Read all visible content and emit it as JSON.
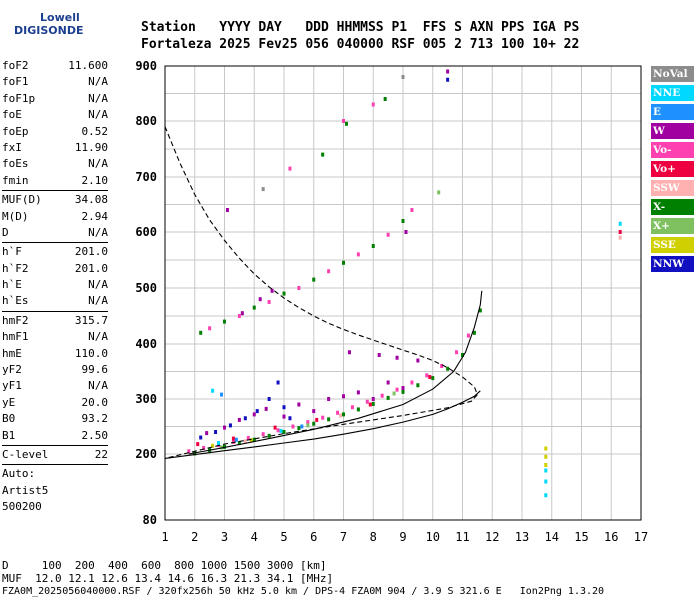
{
  "logo": {
    "line1": "Lowell",
    "line2": "DIGISONDE"
  },
  "header": {
    "line1": "Station   YYYY DAY   DDD HHMMSS P1  FFS S AXN PPS IGA PS",
    "line2": "Fortaleza 2025 Fev25 056 040000 RSF 005 2 713 100 10+ 22"
  },
  "params": [
    {
      "label": "foF2",
      "value": "11.600"
    },
    {
      "label": "foF1",
      "value": "N/A"
    },
    {
      "label": "foF1p",
      "value": "N/A"
    },
    {
      "label": "foE",
      "value": "N/A"
    },
    {
      "label": "foEp",
      "value": "0.52"
    },
    {
      "label": "fxI",
      "value": "11.90"
    },
    {
      "label": "foEs",
      "value": "N/A"
    },
    {
      "label": "fmin",
      "value": "2.10"
    },
    {
      "sep": true
    },
    {
      "label": "MUF(D)",
      "value": "34.08"
    },
    {
      "label": "M(D)",
      "value": "2.94"
    },
    {
      "label": "D",
      "value": "N/A"
    },
    {
      "sep": true
    },
    {
      "label": "h`F",
      "value": "201.0"
    },
    {
      "label": "h`F2",
      "value": "201.0"
    },
    {
      "label": "h`E",
      "value": "N/A"
    },
    {
      "label": "h`Es",
      "value": "N/A"
    },
    {
      "sep": true
    },
    {
      "label": "hmF2",
      "value": "315.7"
    },
    {
      "label": "hmF1",
      "value": "N/A"
    },
    {
      "label": "hmE",
      "value": "110.0"
    },
    {
      "label": "yF2",
      "value": "99.6"
    },
    {
      "label": "yF1",
      "value": "N/A"
    },
    {
      "label": "yE",
      "value": "20.0"
    },
    {
      "label": "B0",
      "value": "93.2"
    },
    {
      "label": "B1",
      "value": "2.50"
    },
    {
      "sep": true
    },
    {
      "label": "C-level",
      "value": "22"
    },
    {
      "sep": true
    },
    {
      "label": "Auto:",
      "value": ""
    },
    {
      "label": "Artist5",
      "value": ""
    },
    {
      "label": "500200",
      "value": ""
    }
  ],
  "legend": [
    {
      "label": "NoVal",
      "color": "#8c8c8c"
    },
    {
      "label": "NNE",
      "color": "#00d8ff"
    },
    {
      "label": "E",
      "color": "#1e90ff"
    },
    {
      "label": "W",
      "color": "#a000a0"
    },
    {
      "label": "Vo-",
      "color": "#ff40b0"
    },
    {
      "label": "Vo+",
      "color": "#ee0040"
    },
    {
      "label": "SSW",
      "color": "#ffb0b0"
    },
    {
      "label": "X-",
      "color": "#008000"
    },
    {
      "label": "X+",
      "color": "#7fc060"
    },
    {
      "label": "SSE",
      "color": "#d0d000"
    },
    {
      "label": "NNW",
      "color": "#1010c0"
    }
  ],
  "footer": {
    "line1": "D     100  200  400  600  800 1000 1500 3000 [km]",
    "line2": "MUF  12.0 12.1 12.6 13.4 14.6 16.3 21.3 34.1 [MHz]",
    "line3": "FZA0M_2025056040000.RSF / 320fx256h 50 kHz 5.0 km / DPS-4 FZA0M 904 / 3.9 S 321.6 E   Ion2Png 1.3.20"
  },
  "chart_data": {
    "type": "scatter",
    "xlim": [
      1,
      17
    ],
    "ylim": [
      80,
      900
    ],
    "x_ticks": [
      1,
      2,
      3,
      4,
      5,
      6,
      7,
      8,
      9,
      10,
      11,
      12,
      13,
      14,
      15,
      16,
      17
    ],
    "y_ticks": [
      80,
      200,
      300,
      400,
      500,
      600,
      700,
      800,
      900
    ],
    "grid": true,
    "series": [
      {
        "name": "X-",
        "color": "#008000",
        "points": [
          [
            2.0,
            201
          ],
          [
            2.5,
            207
          ],
          [
            3.0,
            213
          ],
          [
            3.5,
            220
          ],
          [
            4.0,
            226
          ],
          [
            4.5,
            233
          ],
          [
            5.0,
            240
          ],
          [
            5.5,
            247
          ],
          [
            6.0,
            255
          ],
          [
            6.5,
            263
          ],
          [
            7.0,
            272
          ],
          [
            7.5,
            281
          ],
          [
            8.0,
            291
          ],
          [
            8.5,
            302
          ],
          [
            9.0,
            313
          ],
          [
            9.5,
            325
          ],
          [
            10.0,
            338
          ],
          [
            10.5,
            355
          ],
          [
            11.0,
            380
          ],
          [
            11.4,
            420
          ],
          [
            11.6,
            460
          ],
          [
            2.2,
            420
          ],
          [
            3.0,
            440
          ],
          [
            4.0,
            465
          ],
          [
            5.0,
            490
          ],
          [
            6.0,
            515
          ],
          [
            7.0,
            545
          ],
          [
            8.0,
            575
          ],
          [
            9.0,
            620
          ],
          [
            6.3,
            740
          ],
          [
            7.1,
            795
          ],
          [
            8.4,
            840
          ]
        ]
      },
      {
        "name": "Vo-",
        "color": "#ff40b0",
        "points": [
          [
            1.8,
            205
          ],
          [
            2.3,
            211
          ],
          [
            2.8,
            216
          ],
          [
            3.3,
            222
          ],
          [
            3.8,
            229
          ],
          [
            4.3,
            236
          ],
          [
            4.8,
            243
          ],
          [
            5.3,
            250
          ],
          [
            5.8,
            258
          ],
          [
            6.3,
            266
          ],
          [
            6.8,
            275
          ],
          [
            7.3,
            285
          ],
          [
            7.8,
            295
          ],
          [
            8.3,
            306
          ],
          [
            8.8,
            317
          ],
          [
            9.3,
            330
          ],
          [
            9.8,
            343
          ],
          [
            10.3,
            360
          ],
          [
            10.8,
            385
          ],
          [
            11.2,
            415
          ],
          [
            2.5,
            428
          ],
          [
            3.5,
            450
          ],
          [
            4.5,
            475
          ],
          [
            5.5,
            500
          ],
          [
            6.5,
            530
          ],
          [
            7.5,
            560
          ],
          [
            8.5,
            595
          ],
          [
            9.3,
            640
          ],
          [
            5.2,
            715
          ],
          [
            7.0,
            800
          ],
          [
            8.0,
            830
          ]
        ]
      },
      {
        "name": "W",
        "color": "#a000a0",
        "points": [
          [
            2.4,
            238
          ],
          [
            3.0,
            248
          ],
          [
            3.5,
            262
          ],
          [
            4.0,
            272
          ],
          [
            4.4,
            282
          ],
          [
            5.0,
            268
          ],
          [
            5.5,
            290
          ],
          [
            6.0,
            278
          ],
          [
            6.5,
            300
          ],
          [
            7.0,
            305
          ],
          [
            7.5,
            312
          ],
          [
            8.0,
            300
          ],
          [
            8.5,
            330
          ],
          [
            9.0,
            320
          ],
          [
            4.2,
            480
          ],
          [
            4.6,
            495
          ],
          [
            3.6,
            455
          ],
          [
            8.2,
            380
          ],
          [
            8.8,
            375
          ],
          [
            9.5,
            370
          ],
          [
            7.2,
            385
          ],
          [
            3.1,
            640
          ],
          [
            9.1,
            600
          ],
          [
            10.5,
            890
          ]
        ]
      },
      {
        "name": "NNW",
        "color": "#1010c0",
        "points": [
          [
            2.2,
            230
          ],
          [
            2.7,
            240
          ],
          [
            3.2,
            252
          ],
          [
            3.7,
            265
          ],
          [
            4.1,
            278
          ],
          [
            4.5,
            300
          ],
          [
            4.8,
            330
          ],
          [
            5.0,
            285
          ],
          [
            5.2,
            265
          ],
          [
            10.5,
            875
          ]
        ]
      },
      {
        "name": "Vo+",
        "color": "#ee0040",
        "points": [
          [
            2.1,
            218
          ],
          [
            3.3,
            228
          ],
          [
            4.7,
            248
          ],
          [
            6.1,
            262
          ],
          [
            7.9,
            290
          ],
          [
            9.9,
            340
          ],
          [
            16.3,
            600
          ]
        ]
      },
      {
        "name": "SSE",
        "color": "#d0d000",
        "points": [
          [
            2.6,
            215
          ],
          [
            3.9,
            225
          ],
          [
            13.8,
            210
          ],
          [
            13.8,
            195
          ],
          [
            13.8,
            180
          ]
        ]
      },
      {
        "name": "NNE",
        "color": "#00d8ff",
        "points": [
          [
            2.8,
            220
          ],
          [
            4.9,
            242
          ],
          [
            13.8,
            170
          ],
          [
            13.8,
            150
          ],
          [
            13.8,
            125
          ],
          [
            16.3,
            615
          ],
          [
            2.6,
            315
          ]
        ]
      },
      {
        "name": "E",
        "color": "#1e90ff",
        "points": [
          [
            3.4,
            226
          ],
          [
            5.6,
            250
          ],
          [
            2.9,
            308
          ]
        ]
      },
      {
        "name": "X+",
        "color": "#7fc060",
        "points": [
          [
            2.9,
            212
          ],
          [
            5.8,
            252
          ],
          [
            8.7,
            310
          ],
          [
            10.2,
            672
          ]
        ]
      },
      {
        "name": "SSW",
        "color": "#ffb0b0",
        "points": [
          [
            3.7,
            223
          ],
          [
            6.9,
            270
          ],
          [
            16.3,
            590
          ]
        ]
      },
      {
        "name": "NoVal",
        "color": "#8c8c8c",
        "points": [
          [
            4.3,
            678
          ],
          [
            9.0,
            880
          ]
        ]
      }
    ],
    "curves": [
      {
        "style": "dashed",
        "points": [
          [
            1.0,
            790
          ],
          [
            1.5,
            725
          ],
          [
            2.0,
            668
          ],
          [
            2.5,
            622
          ],
          [
            3.0,
            585
          ],
          [
            3.5,
            553
          ],
          [
            4.0,
            525
          ],
          [
            4.5,
            502
          ],
          [
            5.0,
            482
          ],
          [
            5.5,
            465
          ],
          [
            6.0,
            450
          ],
          [
            6.5,
            437
          ],
          [
            7.0,
            426
          ],
          [
            7.5,
            416
          ],
          [
            8.0,
            407
          ],
          [
            8.5,
            398
          ],
          [
            9.0,
            389
          ],
          [
            9.5,
            380
          ],
          [
            10.0,
            370
          ],
          [
            10.5,
            357
          ],
          [
            11.0,
            340
          ],
          [
            11.4,
            322
          ],
          [
            11.5,
            308
          ],
          [
            11.3,
            296
          ],
          [
            10.5,
            284
          ],
          [
            9.0,
            270
          ],
          [
            7.0,
            254
          ],
          [
            5.0,
            237
          ],
          [
            3.0,
            218
          ],
          [
            1.0,
            192
          ]
        ]
      },
      {
        "style": "solid",
        "points": [
          [
            1.0,
            192
          ],
          [
            2.0,
            199
          ],
          [
            3.0,
            206
          ],
          [
            4.0,
            213
          ],
          [
            5.0,
            220
          ],
          [
            6.0,
            227
          ],
          [
            7.0,
            236
          ],
          [
            8.0,
            246
          ],
          [
            9.0,
            258
          ],
          [
            10.0,
            272
          ],
          [
            10.5,
            282
          ],
          [
            11.0,
            294
          ],
          [
            11.4,
            305
          ],
          [
            11.6,
            315
          ]
        ]
      },
      {
        "style": "solid",
        "points": [
          [
            1.8,
            200
          ],
          [
            3.0,
            212
          ],
          [
            4.5,
            228
          ],
          [
            6.0,
            245
          ],
          [
            7.5,
            265
          ],
          [
            9.0,
            290
          ],
          [
            10.0,
            318
          ],
          [
            10.7,
            350
          ],
          [
            11.1,
            385
          ],
          [
            11.4,
            430
          ],
          [
            11.6,
            470
          ],
          [
            11.65,
            495
          ]
        ]
      }
    ]
  }
}
